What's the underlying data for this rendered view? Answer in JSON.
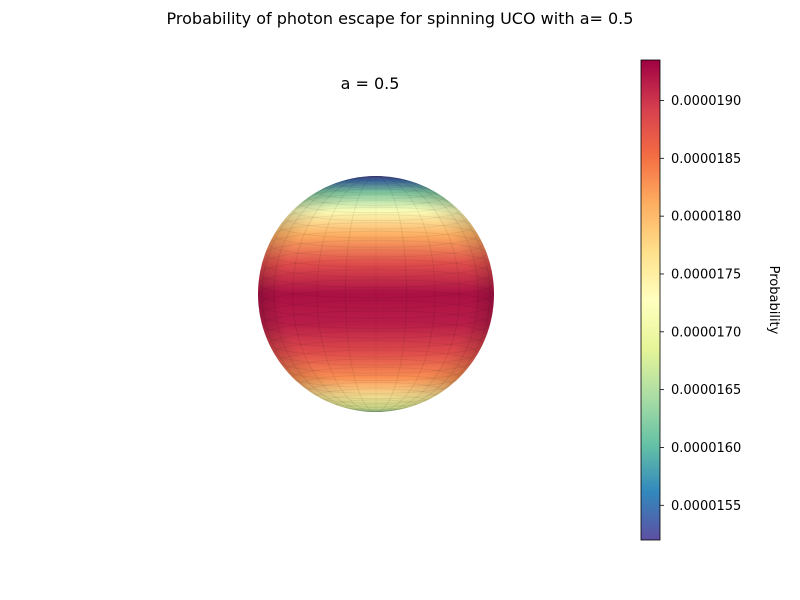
{
  "figure": {
    "title": "Probability of photon escape for spinning UCO with a= 0.5",
    "subplot_title": "a = 0.5"
  },
  "chart_data": {
    "type": "heatmap",
    "subtype": "3d-sphere-surface",
    "title": "Probability of photon escape for spinning UCO with a= 0.5",
    "subtitle": "a = 0.5",
    "colormap": "Spectral_r",
    "colorbar": {
      "label": "Probability",
      "vmin": 1.52e-05,
      "vmax": 1.935e-05,
      "ticks": [
        1.55e-05,
        1.6e-05,
        1.65e-05,
        1.7e-05,
        1.75e-05,
        1.8e-05,
        1.85e-05,
        1.9e-05
      ],
      "tick_labels": [
        "0.0000155",
        "0.0000160",
        "0.0000165",
        "0.0000170",
        "0.0000175",
        "0.0000180",
        "0.0000185",
        "0.0000190"
      ]
    },
    "surface": {
      "polar_angle_deg": [
        0,
        15,
        30,
        45,
        60,
        75,
        90,
        105,
        120,
        135,
        150,
        165,
        180
      ],
      "probability": [
        1.525e-05,
        1.545e-05,
        1.62e-05,
        1.72e-05,
        1.81e-05,
        1.88e-05,
        1.925e-05,
        1.915e-05,
        1.88e-05,
        1.83e-05,
        1.76e-05,
        1.69e-05,
        1.65e-05
      ]
    },
    "grid": false,
    "axes_visible": false
  }
}
